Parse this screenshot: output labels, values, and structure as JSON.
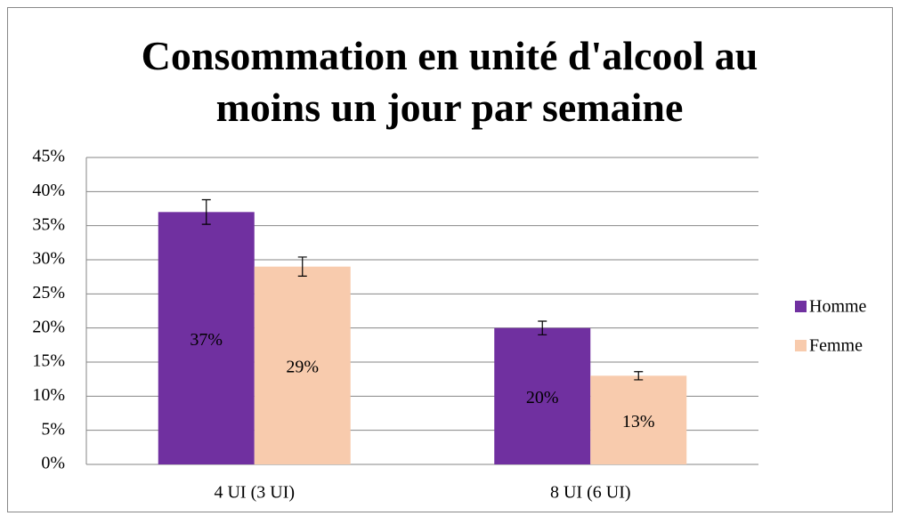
{
  "chart_data": {
    "type": "bar",
    "title": "Consommation en unité d'alcool au moins un jour par semaine",
    "categories": [
      "4 UI (3 UI)",
      "8 UI (6 UI)"
    ],
    "series": [
      {
        "name": "Homme",
        "color": "#7030a0",
        "values": [
          37,
          20
        ],
        "value_labels": [
          "37%",
          "20%"
        ],
        "errors": [
          1.8,
          1
        ]
      },
      {
        "name": "Femme",
        "color": "#f8cbad",
        "values": [
          29,
          13
        ],
        "value_labels": [
          "29%",
          "13%"
        ],
        "errors": [
          1.4,
          0.6
        ]
      }
    ],
    "ylim": [
      0,
      45
    ],
    "yticks": [
      {
        "value": 0,
        "label": "0%"
      },
      {
        "value": 5,
        "label": "5%"
      },
      {
        "value": 10,
        "label": "10%"
      },
      {
        "value": 15,
        "label": "15%"
      },
      {
        "value": 20,
        "label": "20%"
      },
      {
        "value": 25,
        "label": "25%"
      },
      {
        "value": 30,
        "label": "30%"
      },
      {
        "value": 35,
        "label": "35%"
      },
      {
        "value": 40,
        "label": "40%"
      },
      {
        "value": 45,
        "label": "45%"
      }
    ],
    "grid": true,
    "legend": "right"
  }
}
